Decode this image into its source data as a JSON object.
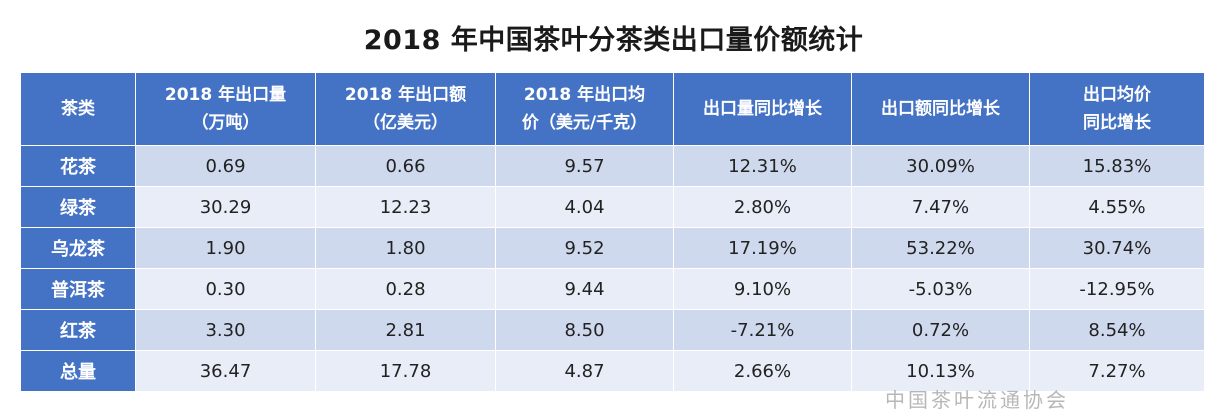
{
  "title": "2018 年中国茶叶分茶类出口量价额统计",
  "table": {
    "headers": [
      [
        "茶类"
      ],
      [
        "2018 年出口量",
        "（万吨）"
      ],
      [
        "2018 年出口额",
        "（亿美元）"
      ],
      [
        "2018 年出口均",
        "价（美元/千克）"
      ],
      [
        "出口量同比增长"
      ],
      [
        "出口额同比增长"
      ],
      [
        "出口均价",
        "同比增长"
      ]
    ],
    "rows": [
      {
        "name": "花茶",
        "cells": [
          "0.69",
          "0.66",
          "9.57",
          "12.31%",
          "30.09%",
          "15.83%"
        ]
      },
      {
        "name": "绿茶",
        "cells": [
          "30.29",
          "12.23",
          "4.04",
          "2.80%",
          "7.47%",
          "4.55%"
        ]
      },
      {
        "name": "乌龙茶",
        "cells": [
          "1.90",
          "1.80",
          "9.52",
          "17.19%",
          "53.22%",
          "30.74%"
        ]
      },
      {
        "name": "普洱茶",
        "cells": [
          "0.30",
          "0.28",
          "9.44",
          "9.10%",
          "-5.03%",
          "-12.95%"
        ]
      },
      {
        "name": "红茶",
        "cells": [
          "3.30",
          "2.81",
          "8.50",
          "-7.21%",
          "0.72%",
          "8.54%"
        ]
      },
      {
        "name": "总量",
        "cells": [
          "36.47",
          "17.78",
          "4.87",
          "2.66%",
          "10.13%",
          "7.27%"
        ]
      }
    ]
  },
  "watermark": "中国茶叶流通协会"
}
